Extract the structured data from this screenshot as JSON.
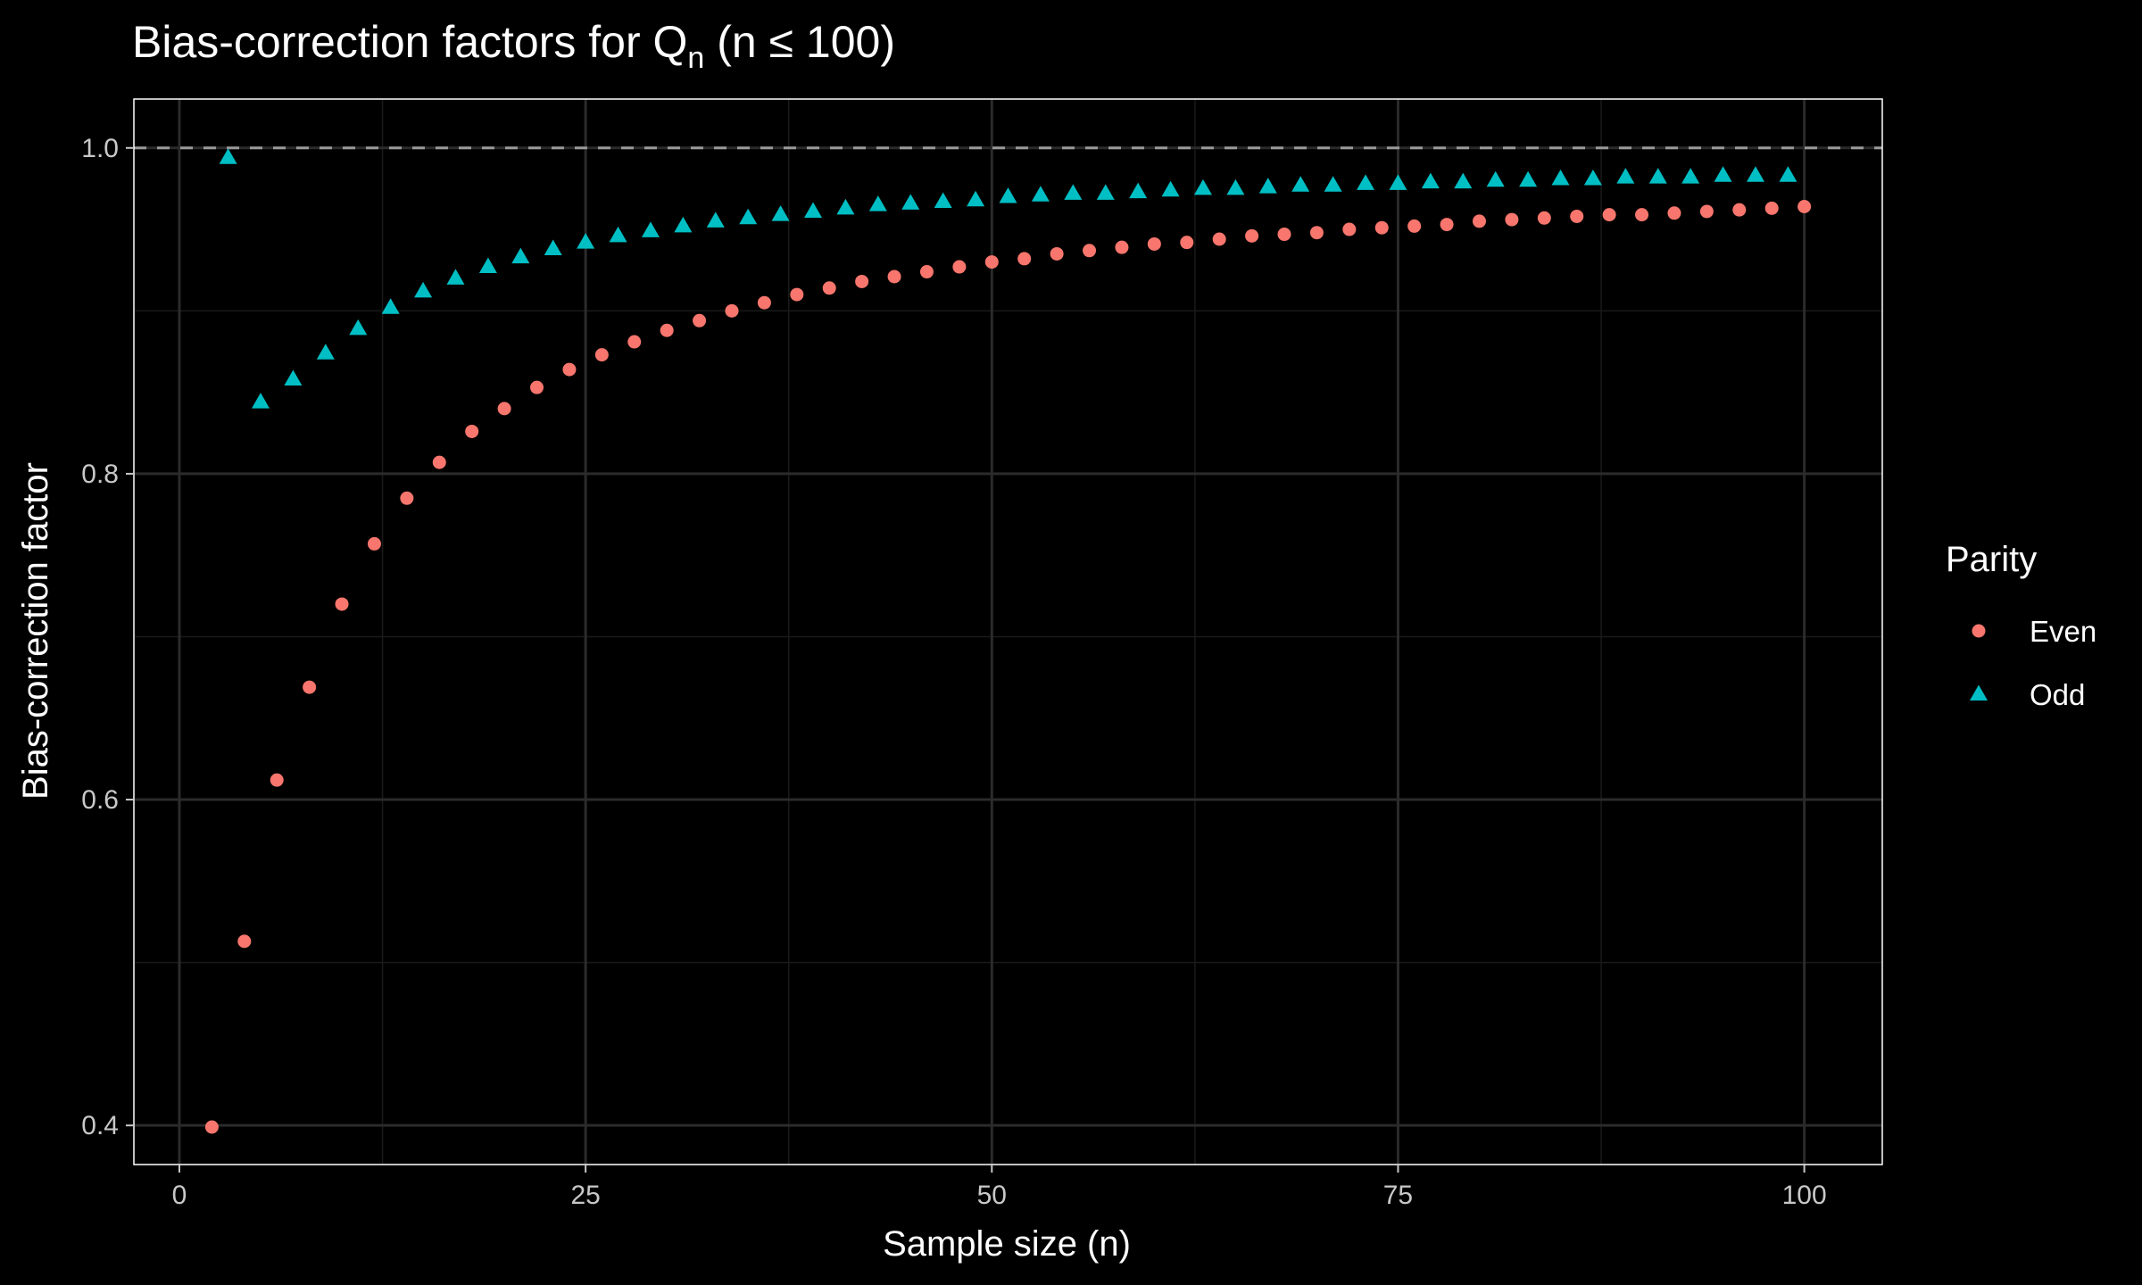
{
  "chart_data": {
    "type": "scatter",
    "title": {
      "prefix": "Bias-correction factors for Q",
      "subscript": "n",
      "suffix": " (n ≤ 100)"
    },
    "xlabel": "Sample size (n)",
    "ylabel": "Bias-correction factor",
    "xlim": [
      -2.8,
      104.8
    ],
    "ylim": [
      0.376,
      1.03
    ],
    "x_ticks": [
      0,
      25,
      50,
      75,
      100
    ],
    "x_tick_labels": [
      "0",
      "25",
      "50",
      "75",
      "100"
    ],
    "y_ticks": [
      0.4,
      0.6,
      0.8,
      1.0
    ],
    "y_tick_labels": [
      "0.4",
      "0.6",
      "0.8",
      "1.0"
    ],
    "x_minor_ticks": [
      12.5,
      37.5,
      62.5,
      87.5
    ],
    "y_minor_ticks": [
      0.5,
      0.7,
      0.9
    ],
    "reference_line": {
      "y": 1.0,
      "style": "dashed",
      "color": "#9a9a9a"
    },
    "grid": true,
    "legend": {
      "title": "Parity",
      "position": "right"
    },
    "series": [
      {
        "name": "Even",
        "shape": "circle",
        "color": "#F8766D",
        "x": [
          2,
          4,
          6,
          8,
          10,
          12,
          14,
          16,
          18,
          20,
          22,
          24,
          26,
          28,
          30,
          32,
          34,
          36,
          38,
          40,
          42,
          44,
          46,
          48,
          50,
          52,
          54,
          56,
          58,
          60,
          62,
          64,
          66,
          68,
          70,
          72,
          74,
          76,
          78,
          80,
          82,
          84,
          86,
          88,
          90,
          92,
          94,
          96,
          98,
          100
        ],
        "y": [
          0.399,
          0.513,
          0.612,
          0.669,
          0.72,
          0.757,
          0.785,
          0.807,
          0.826,
          0.84,
          0.853,
          0.864,
          0.873,
          0.881,
          0.888,
          0.894,
          0.9,
          0.905,
          0.91,
          0.914,
          0.918,
          0.921,
          0.924,
          0.927,
          0.93,
          0.932,
          0.935,
          0.937,
          0.939,
          0.941,
          0.942,
          0.944,
          0.946,
          0.947,
          0.948,
          0.95,
          0.951,
          0.952,
          0.953,
          0.955,
          0.956,
          0.957,
          0.958,
          0.959,
          0.959,
          0.96,
          0.961,
          0.962,
          0.963,
          0.964
        ]
      },
      {
        "name": "Odd",
        "shape": "triangle",
        "color": "#00BFC4",
        "x": [
          3,
          5,
          7,
          9,
          11,
          13,
          15,
          17,
          19,
          21,
          23,
          25,
          27,
          29,
          31,
          33,
          35,
          37,
          39,
          41,
          43,
          45,
          47,
          49,
          51,
          53,
          55,
          57,
          59,
          61,
          63,
          65,
          67,
          69,
          71,
          73,
          75,
          77,
          79,
          81,
          83,
          85,
          87,
          89,
          91,
          93,
          95,
          97,
          99
        ],
        "y": [
          0.994,
          0.844,
          0.858,
          0.874,
          0.889,
          0.902,
          0.912,
          0.92,
          0.927,
          0.933,
          0.938,
          0.942,
          0.946,
          0.949,
          0.952,
          0.955,
          0.957,
          0.959,
          0.961,
          0.963,
          0.965,
          0.966,
          0.967,
          0.968,
          0.97,
          0.971,
          0.972,
          0.972,
          0.973,
          0.974,
          0.975,
          0.975,
          0.976,
          0.977,
          0.977,
          0.978,
          0.978,
          0.979,
          0.979,
          0.98,
          0.98,
          0.981,
          0.981,
          0.982,
          0.982,
          0.982,
          0.983,
          0.983,
          0.983
        ]
      }
    ]
  }
}
